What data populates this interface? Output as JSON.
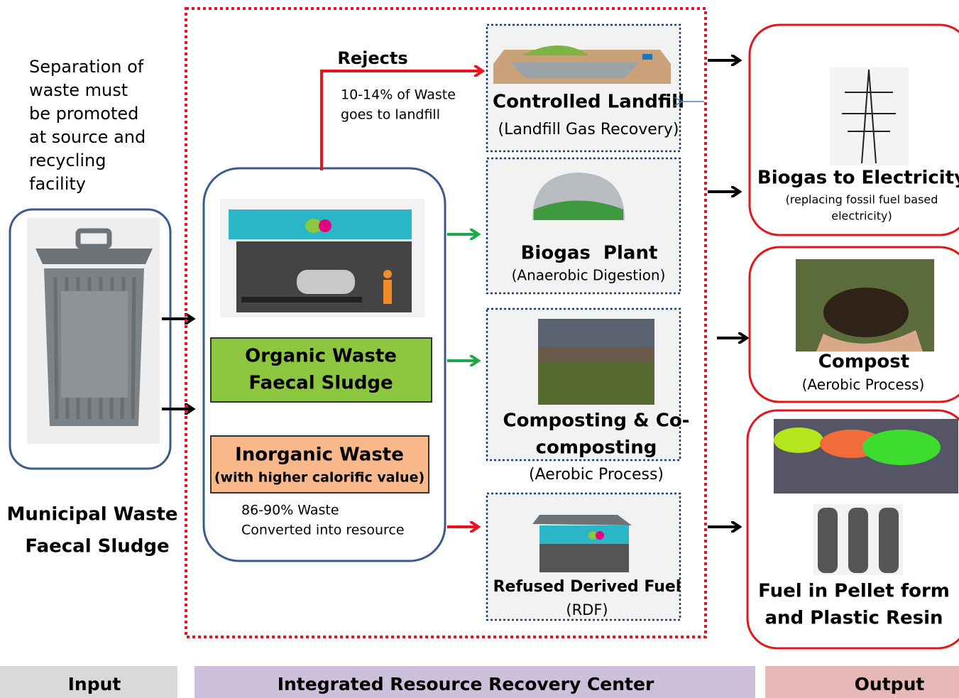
{
  "note": [
    "Separation of",
    "waste must",
    "be promoted",
    "at source and",
    "recycling",
    "facility"
  ],
  "input": {
    "label": [
      "Municipal Waste",
      "Faecal Sludge"
    ]
  },
  "center": {
    "organic": [
      "Organic Waste",
      "Faecal Sludge"
    ],
    "inorganic": {
      "title": "Inorganic Waste",
      "subtitle": "(with higher calorific value)"
    },
    "converted": [
      "86-90% Waste",
      "Converted into resource"
    ],
    "rejects": {
      "title": "Rejects",
      "note": [
        "10-14% of Waste",
        "goes to landfill"
      ]
    }
  },
  "processes": [
    {
      "title": [
        "Controlled Landfill"
      ],
      "subtitle": "(Landfill Gas Recovery)"
    },
    {
      "title": [
        "Biogas  Plant"
      ],
      "subtitle": "(Anaerobic Digestion)"
    },
    {
      "title": [
        "Composting & Co-",
        "composting"
      ],
      "subtitle": "(Aerobic Process)"
    },
    {
      "title": [
        "Refused Derived Fuel"
      ],
      "subtitle": "(RDF)"
    }
  ],
  "outputs": [
    {
      "title": [
        "Biogas to Electricity"
      ],
      "subtitle": [
        "(replacing fossil fuel based",
        "electricity)"
      ]
    },
    {
      "title": [
        "Compost"
      ],
      "subtitle": [
        "(Aerobic Process)"
      ]
    },
    {
      "title": [
        "Fuel in Pellet form",
        "and Plastic Resin"
      ],
      "subtitle": []
    }
  ],
  "footer": [
    "Input",
    "Integrated Resource Recovery Center",
    "Output"
  ]
}
